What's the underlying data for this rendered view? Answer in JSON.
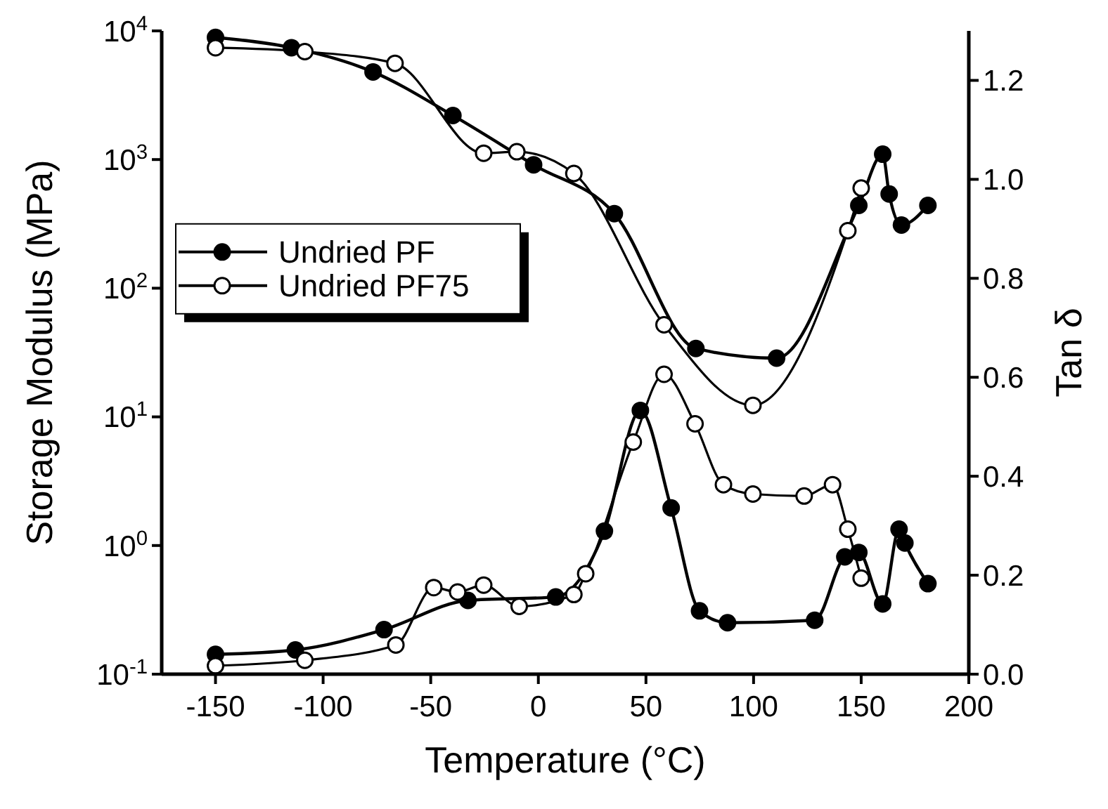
{
  "chart_data": {
    "type": "line",
    "xlabel": "Temperature (°C)",
    "ylabel": "Storage Modulus (MPa)",
    "y2label": "Tan δ",
    "xlim": [
      -175,
      200
    ],
    "xticks": [
      -150,
      -100,
      -50,
      0,
      50,
      100,
      150,
      200
    ],
    "ylim": [
      0.1,
      10000
    ],
    "yticks": [
      {
        "value": 0.1,
        "label": "10$^{-1}$"
      },
      {
        "value": 1,
        "label": "10$^{0}$"
      },
      {
        "value": 10,
        "label": "10$^{1}$"
      },
      {
        "value": 100,
        "label": "10$^{2}$"
      },
      {
        "value": 1000,
        "label": "10$^{3}$"
      },
      {
        "value": 10000,
        "label": "10$^{4}$"
      }
    ],
    "y2lim": [
      0,
      1.3
    ],
    "y2ticks": [
      {
        "value": 0,
        "label": "0.0"
      },
      {
        "value": 0.2,
        "label": "0.2"
      },
      {
        "value": 0.4,
        "label": "0.4"
      },
      {
        "value": 0.6,
        "label": "0.6"
      },
      {
        "value": 0.8,
        "label": "0.8"
      },
      {
        "value": 1.0,
        "label": "1.0"
      },
      {
        "value": 1.2,
        "label": "1.2"
      }
    ],
    "log": "y",
    "grid": false,
    "legend": "left",
    "marker": "circle",
    "line_style": "solid",
    "series": [
      {
        "name": "Undried PF",
        "color": "#000000",
        "x": [
          -150,
          -114.7,
          -76.8,
          -39.7,
          -2.2,
          35.3,
          73.2,
          110.7,
          148.9,
          160,
          163,
          168.7,
          181
        ],
        "values": [
          8900,
          7400,
          4800,
          2200,
          910,
          380,
          34,
          28.6,
          440,
          1100,
          540,
          310,
          440
        ]
      },
      {
        "name": "Undried PF75",
        "color": "#000000",
        "x": [
          -150,
          -108.5,
          -66.6,
          -25.4,
          -10,
          16.5,
          58.4,
          99.7,
          143.8,
          150
        ],
        "values": [
          7400,
          6900,
          5600,
          1120,
          1150,
          780,
          52,
          12.3,
          280,
          600
        ]
      },
      {
        "color": "#000000",
        "axis": "y2",
        "x": [
          -150,
          -112.9,
          -71.7,
          -32.7,
          8.1,
          30.7,
          47.4,
          61.7,
          74.9,
          87.9,
          128.4,
          142.4,
          148.9,
          160,
          167.6,
          170.3,
          181
        ],
        "values": [
          0.04,
          0.049,
          0.09,
          0.149,
          0.156,
          0.289,
          0.533,
          0.336,
          0.128,
          0.104,
          0.109,
          0.237,
          0.246,
          0.142,
          0.293,
          0.265,
          0.183
        ]
      },
      {
        "color": "#000000",
        "axis": "y2",
        "x": [
          -150,
          -108.5,
          -66.2,
          -48.6,
          -37.5,
          -25.4,
          -8.9,
          16.5,
          22,
          44.1,
          58.4,
          72.8,
          86,
          99.7,
          123.5,
          136.7,
          143.8,
          150
        ],
        "values": [
          0.017,
          0.028,
          0.059,
          0.175,
          0.166,
          0.18,
          0.137,
          0.161,
          0.203,
          0.469,
          0.606,
          0.506,
          0.383,
          0.364,
          0.36,
          0.383,
          0.293,
          0.194
        ]
      }
    ]
  }
}
